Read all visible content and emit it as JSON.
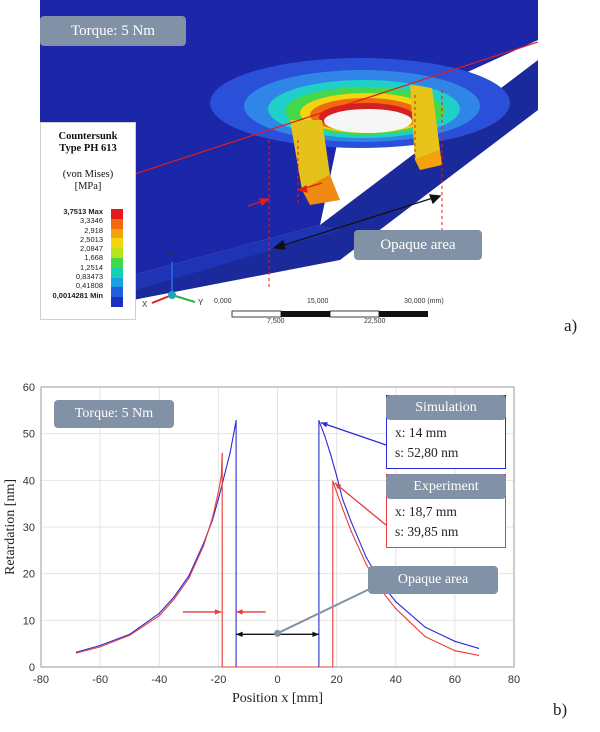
{
  "panel_a": {
    "torque_label": "Torque: 5 Nm",
    "opaque_label": "Opaque area",
    "letter": "a)",
    "legend": {
      "title_line1": "Countersunk",
      "title_line2": "Type PH 613",
      "title_line3": "(von Mises)",
      "title_line4": "[MPa]",
      "ticks": [
        "3,7513 Max",
        "3,3346",
        "2,918",
        "2,5013",
        "2,0847",
        "1,668",
        "1,2514",
        "0,83473",
        "0,41808",
        "0,0014281 Min"
      ],
      "colors": [
        "#e41a1a",
        "#f26a0f",
        "#f5a20b",
        "#f2d410",
        "#b7e21c",
        "#41d84a",
        "#16d0b4",
        "#1a9ee6",
        "#1f5fe0",
        "#1b2fc2"
      ]
    },
    "axes_labels": {
      "z": "Z",
      "y": "Y",
      "x": "X"
    },
    "scale": {
      "top_labels": [
        "0,000",
        "15,000",
        "30,000 (mm)"
      ],
      "bottom_labels": [
        "7,500",
        "22,500"
      ]
    }
  },
  "panel_b": {
    "torque_label": "Torque: 5 Nm",
    "opaque_label": "Opaque area",
    "letter": "b)",
    "simulation_box": {
      "title": "Simulation",
      "x_line": "x: 14 mm",
      "s_line": "s: 52,80 nm",
      "color": "#2b2bd6"
    },
    "experiment_box": {
      "title": "Experiment",
      "x_line": "x: 18,7 mm",
      "s_line": "s: 39,85 nm",
      "color": "#e83b3b"
    }
  },
  "chart_data": {
    "type": "line",
    "xlabel": "Position x [mm]",
    "ylabel": "Retardation [nm]",
    "xlim": [
      -80,
      80
    ],
    "ylim": [
      0,
      60
    ],
    "x_ticks": [
      -80,
      -60,
      -40,
      -20,
      0,
      20,
      40,
      60,
      80
    ],
    "y_ticks": [
      0,
      10,
      20,
      30,
      40,
      50,
      60
    ],
    "grid": true,
    "series": [
      {
        "name": "Simulation",
        "color": "#2b2bd6",
        "x": [
          -68,
          -60,
          -50,
          -40,
          -35,
          -30,
          -25,
          -22,
          -20,
          -18,
          -16,
          -14,
          -14,
          14,
          14,
          16,
          18,
          20,
          22,
          25,
          30,
          35,
          40,
          50,
          60,
          68
        ],
        "y": [
          3.2,
          4.6,
          7.0,
          11.5,
          15.0,
          19.5,
          26.5,
          31.5,
          36.0,
          41.0,
          46.0,
          52.8,
          0,
          0,
          52.8,
          49.5,
          45.5,
          41.0,
          36.0,
          31.0,
          23.5,
          18.0,
          14.0,
          8.5,
          5.5,
          4.0
        ]
      },
      {
        "name": "Experiment",
        "color": "#e83b3b",
        "x": [
          -68,
          -60,
          -50,
          -40,
          -35,
          -30,
          -25,
          -22,
          -20,
          -19,
          -18.7,
          -18.7,
          18.7,
          18.7,
          20,
          22,
          25,
          30,
          35,
          40,
          50,
          60,
          68
        ],
        "y": [
          3.0,
          4.3,
          6.8,
          11.0,
          14.5,
          19.0,
          26.0,
          32.0,
          37.5,
          41.0,
          45.8,
          0,
          0,
          39.85,
          37.5,
          34.0,
          29.0,
          22.0,
          16.5,
          12.5,
          6.5,
          3.5,
          2.5
        ]
      }
    ]
  }
}
